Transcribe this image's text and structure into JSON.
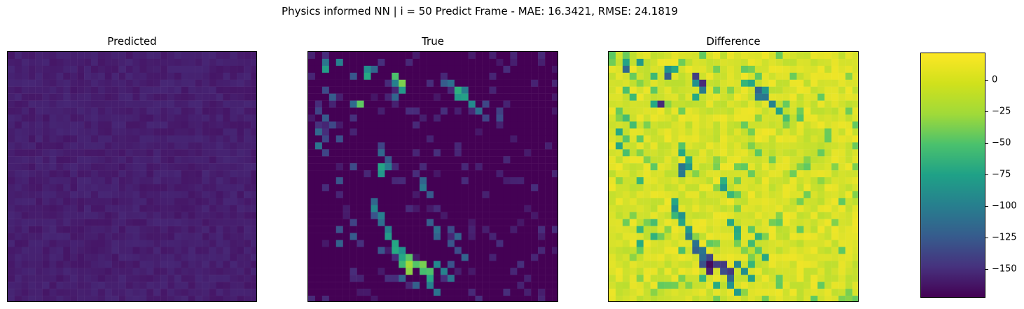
{
  "figure": {
    "suptitle": "Physics informed NN | i = 50 Predict Frame - MAE: 16.3421, RMSE: 24.1819"
  },
  "panels": [
    {
      "title": "Predicted"
    },
    {
      "title": "True"
    },
    {
      "title": "Difference"
    }
  ],
  "colorbar": {
    "colormap": "viridis",
    "range": [
      -173,
      22
    ],
    "ticks": [
      0,
      -25,
      -50,
      -75,
      -100,
      -125,
      -150
    ],
    "tick_labels": [
      "0",
      "−25",
      "−50",
      "−75",
      "−100",
      "−125",
      "−150"
    ]
  },
  "chart_data": [
    {
      "type": "heatmap",
      "title": "Predicted",
      "grid_size": [
        36,
        36
      ],
      "colormap": "viridis",
      "description_values": "nearly uniform dark purple field (predicted values near 0)",
      "colorbar_reference": "shared scale of Difference panel",
      "axis_ticks": "none"
    },
    {
      "type": "heatmap",
      "title": "True",
      "grid_size": [
        36,
        36
      ],
      "colormap": "viridis",
      "hotspots_rowcol": [
        [
          2,
          2
        ],
        [
          1,
          4
        ],
        [
          2,
          8
        ],
        [
          3,
          12
        ],
        [
          4,
          13
        ],
        [
          7,
          7
        ],
        [
          5,
          21
        ],
        [
          6,
          22
        ],
        [
          16,
          10
        ],
        [
          17,
          10
        ],
        [
          22,
          9
        ],
        [
          28,
          12
        ],
        [
          29,
          14
        ],
        [
          30,
          13
        ],
        [
          31,
          14
        ],
        [
          30,
          16
        ],
        [
          31,
          17
        ]
      ],
      "axis_ticks": "none"
    },
    {
      "type": "heatmap",
      "title": "Difference",
      "grid_size": [
        36,
        36
      ],
      "colormap": "viridis",
      "value_range": [
        -173,
        22
      ],
      "colorbar_ticks": [
        0,
        -25,
        -50,
        -75,
        -100,
        -125,
        -150
      ],
      "min_hotspots_rowcol": [
        [
          2,
          8
        ],
        [
          3,
          12
        ],
        [
          4,
          13
        ],
        [
          7,
          7
        ],
        [
          5,
          21
        ],
        [
          6,
          22
        ],
        [
          16,
          10
        ],
        [
          28,
          12
        ],
        [
          29,
          14
        ],
        [
          30,
          13
        ],
        [
          31,
          14
        ],
        [
          30,
          16
        ],
        [
          31,
          17
        ]
      ],
      "axis_ticks": "none"
    }
  ]
}
